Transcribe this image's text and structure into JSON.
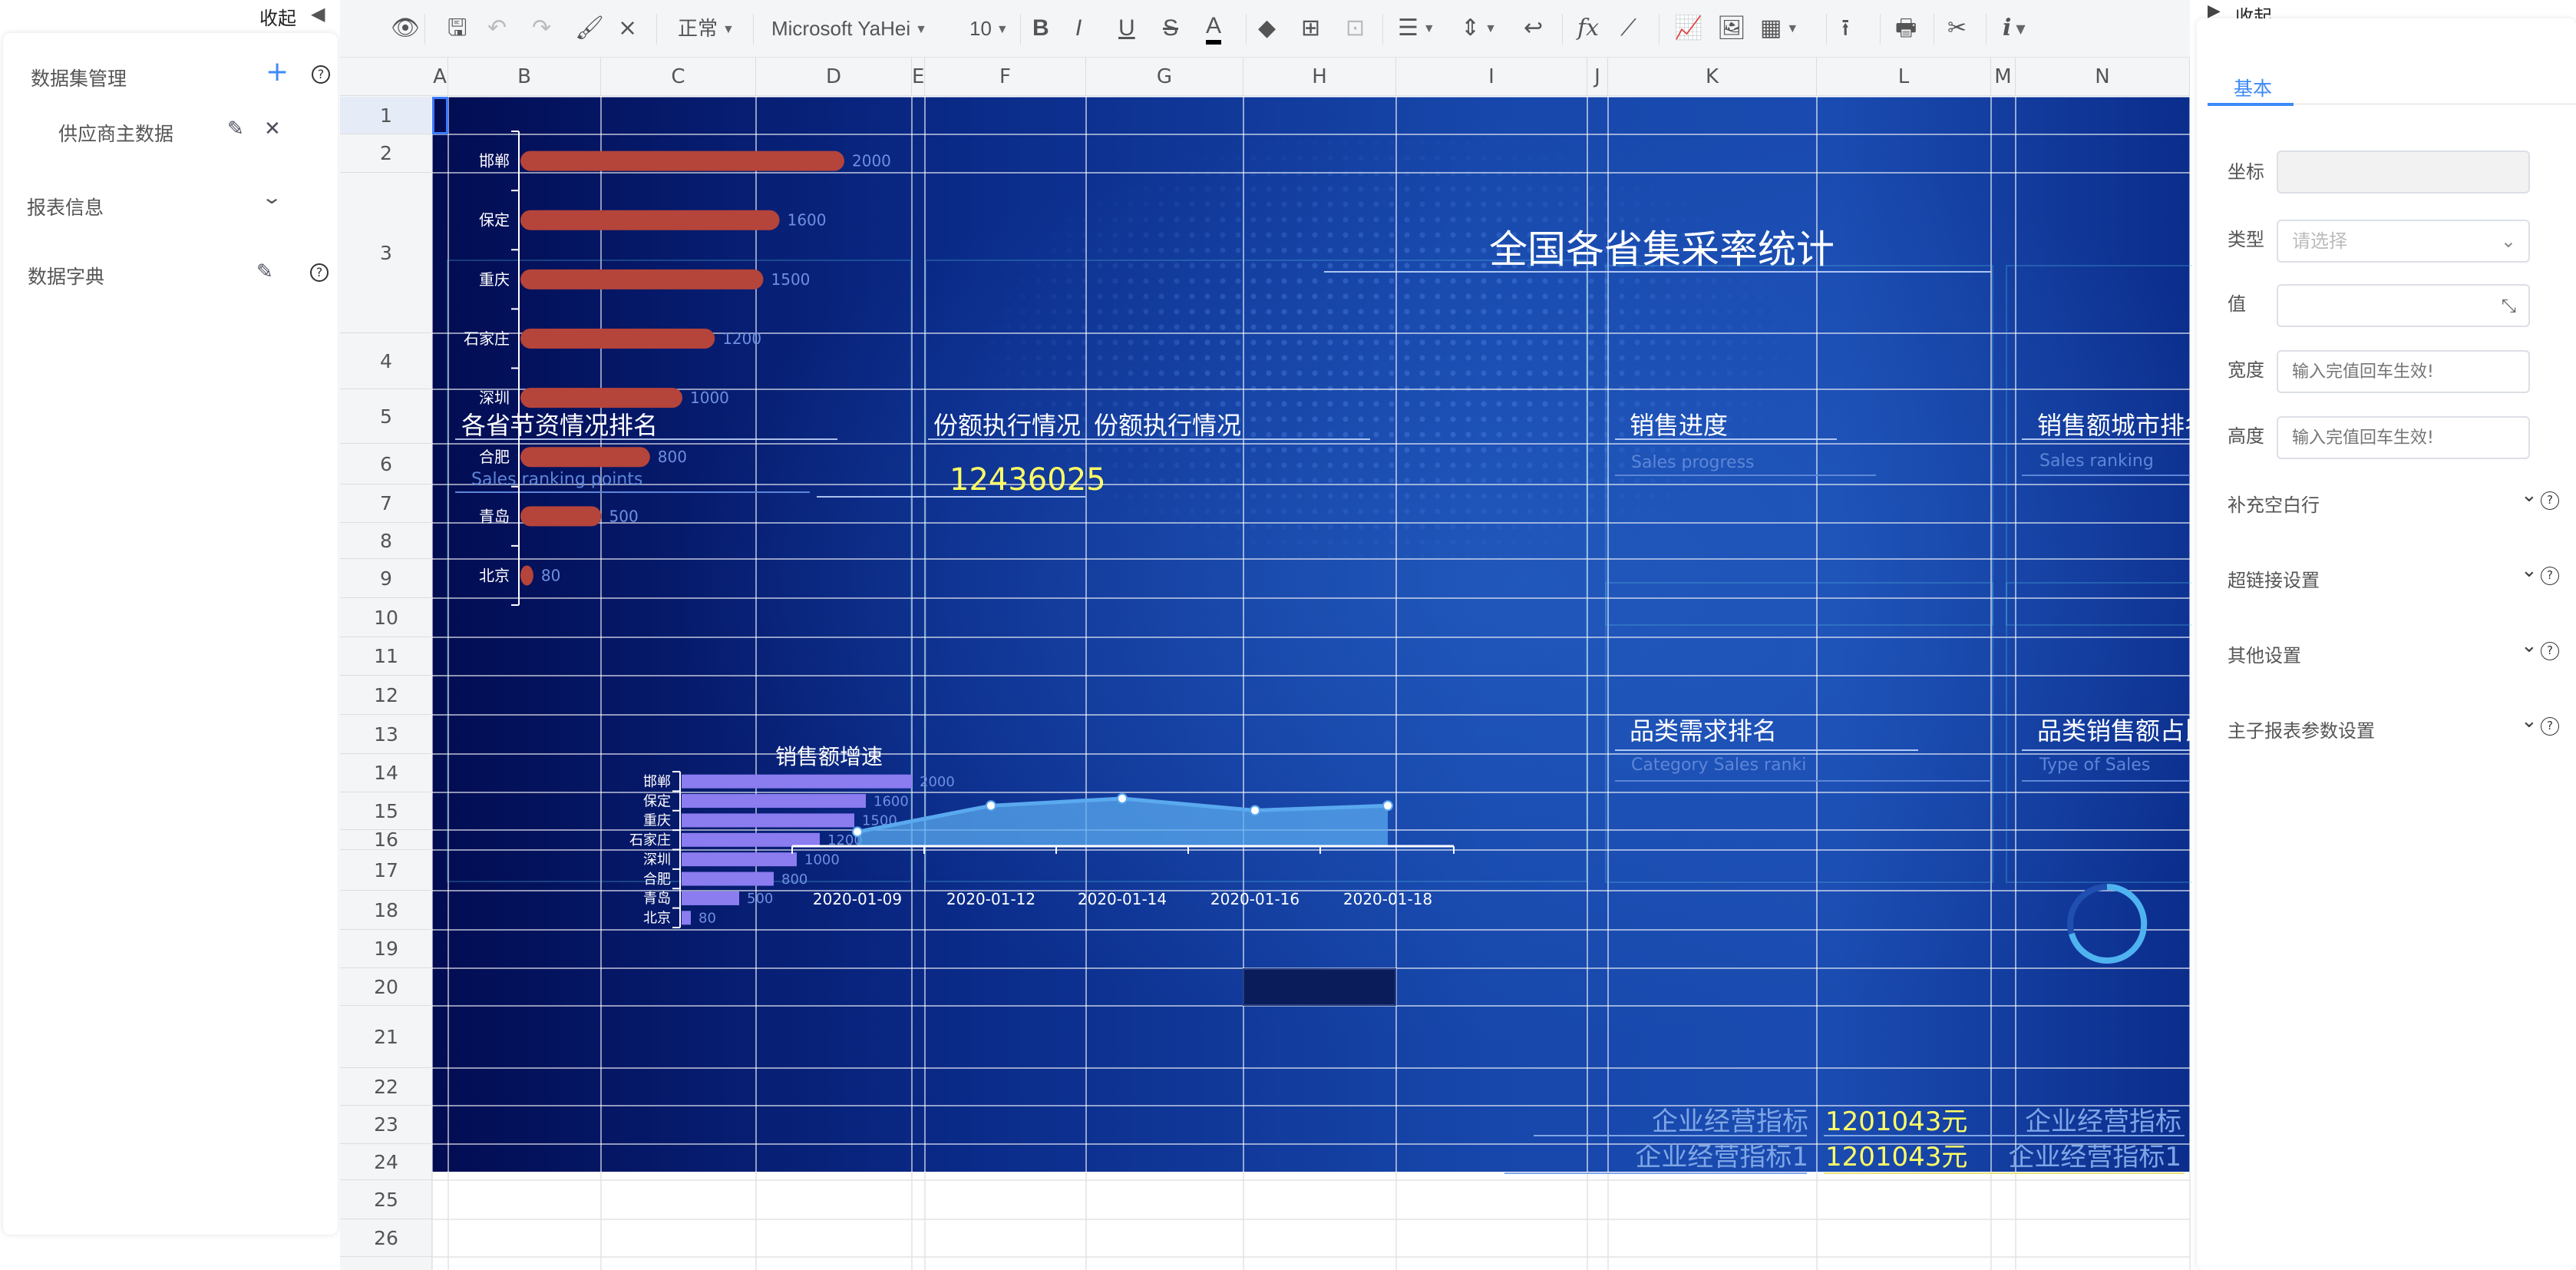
{
  "left_panel": {
    "collapse_label": "收起",
    "sections": [
      {
        "label": "数据集管理",
        "add_icon": "plus-icon",
        "help_icon": "question-circle-icon"
      },
      {
        "label": "报表信息",
        "icon": "chevron-down-icon"
      },
      {
        "label": "数据字典",
        "edit_icon": "pencil-icon",
        "help_icon": "question-circle-icon"
      }
    ],
    "datasets": [
      {
        "label": "供应商主数据",
        "edit_icon": "pencil-icon",
        "delete_icon": "close-icon"
      }
    ]
  },
  "toolbar": {
    "icons": [
      "eye-icon",
      "save-icon",
      "undo-icon",
      "redo-icon",
      "format-painter-icon",
      "clear-format-icon",
      "bold-icon",
      "italic-icon",
      "underline-icon",
      "strikethrough-icon",
      "font-color-icon",
      "fill-color-icon",
      "borders-icon",
      "merge-cells-icon",
      "align-icon",
      "vertical-align-icon",
      "wrap-text-icon",
      "function-icon",
      "formula-icon",
      "chart-icon",
      "image-icon",
      "qrcode-icon",
      "upload-icon",
      "print-icon",
      "tools-icon",
      "info-icon"
    ],
    "style_select": "正常",
    "font_select": "Microsoft YaHei",
    "size_select": "10",
    "bold": "B",
    "italic": "I",
    "underline": "U",
    "strike": "S",
    "font_color": "A",
    "fx": "fx",
    "info": "i"
  },
  "sheet": {
    "columns": [
      "A",
      "B",
      "C",
      "D",
      "E",
      "F",
      "G",
      "H",
      "I",
      "J",
      "K",
      "L",
      "M",
      "N"
    ],
    "rows": [
      "1",
      "2",
      "3",
      "4",
      "5",
      "6",
      "7",
      "8",
      "9",
      "10",
      "11",
      "12",
      "13",
      "14",
      "15",
      "16",
      "17",
      "18",
      "19",
      "20",
      "21",
      "22",
      "23",
      "24",
      "25",
      "26"
    ],
    "selected_cell": "A1",
    "cells": {
      "main_title": "全国各省集采率统计",
      "savings_title": "各省节资情况排名",
      "savings_sub": "Sales ranking points",
      "quota_title_1": "份额执行情况",
      "quota_title_2": "份额执行情况",
      "quota_value": "12436025",
      "progress_title": "销售进度",
      "progress_sub": "Sales progress",
      "city_rank_title": "销售额城市排名",
      "city_rank_sub": "Sales ranking",
      "category_title": "品类需求排名",
      "category_sub": "Category Sales  ranki",
      "category_share_title": "品类销售额占比",
      "category_share_sub": "Type of Sales",
      "kpi_label_1": "企业经营指标",
      "kpi_value_1": "1201043元",
      "kpi_label_1b": "企业经营指标",
      "kpi_label_2": "企业经营指标1",
      "kpi_value_2": "1201043元",
      "kpi_label_2b": "企业经营指标1"
    },
    "colors": {
      "title": "#ffffff",
      "subtitle": "#5e86d8",
      "value_yellow": "#ffff66",
      "kpi_label": "#7fa6e6"
    }
  },
  "chart_data": [
    {
      "type": "bar",
      "orientation": "horizontal",
      "title": "",
      "categories": [
        "邯郸",
        "保定",
        "重庆",
        "石家庄",
        "深圳",
        "合肥",
        "青岛",
        "北京"
      ],
      "values": [
        2000,
        1600,
        1500,
        1200,
        1000,
        800,
        500,
        80
      ],
      "color": "#b5443a"
    },
    {
      "type": "bar",
      "orientation": "horizontal",
      "title": "销售额增速",
      "categories": [
        "邯郸",
        "保定",
        "重庆",
        "石家庄",
        "深圳",
        "合肥",
        "青岛",
        "北京"
      ],
      "values": [
        2000,
        1600,
        1500,
        1200,
        1000,
        800,
        500,
        80
      ],
      "color": "#8b7cf0"
    },
    {
      "type": "area",
      "title": "",
      "x": [
        "2020-01-09",
        "2020-01-12",
        "2020-01-14",
        "2020-01-16",
        "2020-01-18"
      ],
      "values": [
        3,
        8.5,
        10,
        7.5,
        8.5
      ],
      "ylim": [
        0,
        10
      ],
      "color": "#5aa9ef"
    }
  ],
  "right_panel": {
    "collapse_label": "收起",
    "tab": "基本",
    "fields": [
      {
        "label": "坐标",
        "value": ""
      },
      {
        "label": "类型",
        "placeholder": "请选择"
      },
      {
        "label": "值",
        "value": ""
      },
      {
        "label": "宽度",
        "placeholder": "输入完值回车生效!"
      },
      {
        "label": "高度",
        "placeholder": "输入完值回车生效!"
      }
    ],
    "sections": [
      "补充空白行",
      "超链接设置",
      "其他设置",
      "主子报表参数设置"
    ],
    "accent": "#3d8af7"
  }
}
